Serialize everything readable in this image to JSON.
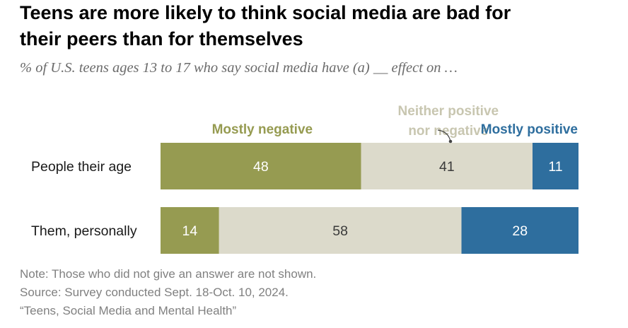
{
  "title_line1": "Teens are more likely to think social media are bad for",
  "title_line2": "their peers than for themselves",
  "subtitle": "% of U.S. teens ages 13 to 17 who say social media have (a) __ effect on …",
  "colors": {
    "negative": "#969b51",
    "neither": "#dcdacb",
    "positive": "#2e6e9e",
    "neither_label": "#c8c6b0"
  },
  "chart_data": {
    "type": "bar",
    "orientation": "horizontal",
    "stacked": true,
    "categories": [
      "People their age",
      "Them, personally"
    ],
    "series": [
      {
        "name": "Mostly negative",
        "values": [
          48,
          14
        ]
      },
      {
        "name": "Neither positive nor negative",
        "name_lines": [
          "Neither positive",
          "nor negative"
        ],
        "values": [
          41,
          58
        ]
      },
      {
        "name": "Mostly positive",
        "values": [
          11,
          28
        ]
      }
    ],
    "xlim": [
      0,
      100
    ]
  },
  "note": "Note: Those who did not give an answer are not shown.",
  "source": "Source: Survey conducted Sept. 18-Oct. 10, 2024.",
  "report": "“Teens, Social Media and Mental Health”"
}
